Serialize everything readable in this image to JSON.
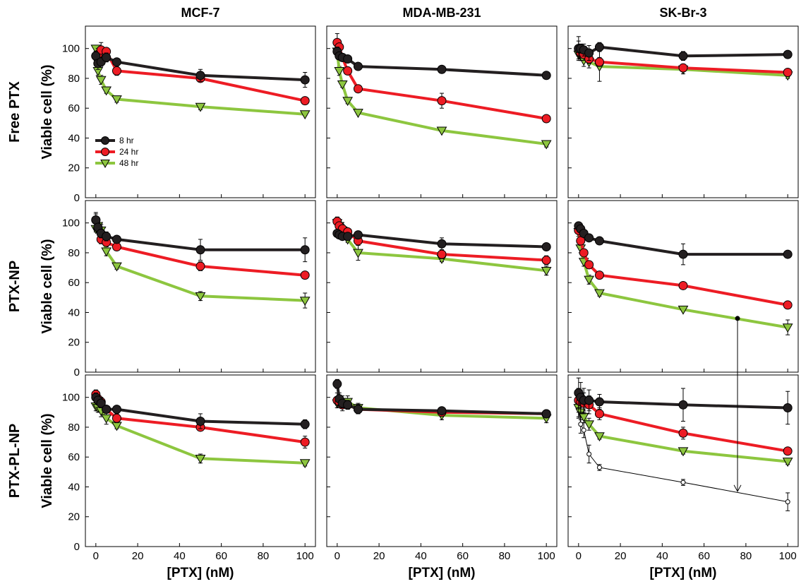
{
  "chart_data": {
    "type": "line",
    "title": "",
    "column_titles": [
      "MCF-7",
      "MDA-MB-231",
      "SK-Br-3"
    ],
    "row_titles": [
      "Free PTX",
      "PTX-NP",
      "PTX-PL-NP"
    ],
    "xlabel": "[PTX] (nM)",
    "ylabel": "Viable cell (%)",
    "xlim": [
      -5,
      105
    ],
    "ylim": [
      0,
      115
    ],
    "xticks": [
      0,
      20,
      40,
      60,
      80,
      100
    ],
    "yticks": [
      0,
      20,
      40,
      60,
      80,
      100
    ],
    "grid": false,
    "legend_position": "lower-left (top-left panel)",
    "colors": {
      "8 hr": "#231f20",
      "24 hr": "#ed1c24",
      "48 hr": "#8dc63f",
      "extra": "#000000"
    },
    "x": [
      0,
      1,
      2.5,
      5,
      10,
      50,
      100
    ],
    "legend": [
      {
        "name": "8 hr",
        "marker": "circle"
      },
      {
        "name": "24 hr",
        "marker": "circle"
      },
      {
        "name": "48 hr",
        "marker": "triangle-down"
      }
    ],
    "panels": [
      {
        "column": "MCF-7",
        "row": "Free PTX",
        "series": [
          {
            "name": "8 hr",
            "values": [
              95,
              90,
              91,
              94,
              91,
              82,
              79
            ],
            "errors": [
              3,
              4,
              3,
              3,
              2,
              4,
              5
            ]
          },
          {
            "name": "24 hr",
            "values": [
              95,
              96,
              99,
              98,
              85,
              80,
              65
            ],
            "errors": [
              3,
              4,
              5,
              2,
              3,
              2,
              2
            ]
          },
          {
            "name": "48 hr",
            "values": [
              100,
              85,
              79,
              72,
              66,
              61,
              56
            ],
            "errors": [
              2,
              3,
              3,
              2,
              2,
              2,
              1
            ]
          }
        ]
      },
      {
        "column": "MDA-MB-231",
        "row": "Free PTX",
        "series": [
          {
            "name": "8 hr",
            "values": [
              98,
              95,
              94,
              93,
              88,
              86,
              82
            ],
            "errors": [
              3,
              2,
              2,
              2,
              1,
              1,
              1
            ]
          },
          {
            "name": "24 hr",
            "values": [
              104,
              101,
              94,
              85,
              73,
              65,
              53
            ],
            "errors": [
              6,
              3,
              2,
              2,
              2,
              5,
              2
            ]
          },
          {
            "name": "48 hr",
            "values": [
              98,
              85,
              76,
              65,
              57,
              45,
              36
            ],
            "errors": [
              3,
              3,
              2,
              2,
              1,
              1,
              2
            ]
          }
        ]
      },
      {
        "column": "SK-Br-3",
        "row": "Free PTX",
        "series": [
          {
            "name": "8 hr",
            "values": [
              100,
              100,
              99,
              97,
              101,
              95,
              96
            ],
            "errors": [
              5,
              3,
              4,
              5,
              3,
              3,
              2
            ]
          },
          {
            "name": "24 hr",
            "values": [
              100,
              97,
              96,
              93,
              91,
              87,
              84
            ],
            "errors": [
              8,
              5,
              4,
              3,
              3,
              2,
              2
            ]
          },
          {
            "name": "48 hr",
            "values": [
              96,
              95,
              92,
              91,
              88,
              86,
              82
            ],
            "errors": [
              3,
              3,
              4,
              4,
              10,
              3,
              2
            ]
          }
        ]
      },
      {
        "column": "MCF-7",
        "row": "PTX-NP",
        "series": [
          {
            "name": "8 hr",
            "values": [
              102,
              97,
              93,
              91,
              89,
              82,
              82
            ],
            "errors": [
              5,
              3,
              3,
              3,
              2,
              7,
              8
            ]
          },
          {
            "name": "24 hr",
            "values": [
              102,
              97,
              89,
              87,
              84,
              71,
              65
            ],
            "errors": [
              4,
              3,
              3,
              2,
              2,
              3,
              2
            ]
          },
          {
            "name": "48 hr",
            "values": [
              96,
              98,
              95,
              81,
              71,
              51,
              48
            ],
            "errors": [
              2,
              3,
              4,
              3,
              2,
              3,
              5
            ]
          }
        ]
      },
      {
        "column": "MDA-MB-231",
        "row": "PTX-NP",
        "series": [
          {
            "name": "8 hr",
            "values": [
              93,
              92,
              91,
              91,
              92,
              86,
              84
            ],
            "errors": [
              2,
              2,
              2,
              2,
              2,
              4,
              2
            ]
          },
          {
            "name": "24 hr",
            "values": [
              101,
              98,
              96,
              94,
              88,
              79,
              75
            ],
            "errors": [
              3,
              3,
              3,
              2,
              3,
              3,
              3
            ]
          },
          {
            "name": "48 hr",
            "values": [
              100,
              98,
              95,
              89,
              80,
              76,
              68
            ],
            "errors": [
              3,
              3,
              3,
              2,
              5,
              2,
              3
            ]
          }
        ]
      },
      {
        "column": "SK-Br-3",
        "row": "PTX-NP",
        "series": [
          {
            "name": "8 hr",
            "values": [
              98,
              96,
              93,
              90,
              88,
              79,
              79
            ],
            "errors": [
              2,
              2,
              2,
              2,
              2,
              7,
              2
            ]
          },
          {
            "name": "24 hr",
            "values": [
              95,
              88,
              80,
              72,
              65,
              58,
              45
            ],
            "errors": [
              2,
              3,
              2,
              2,
              2,
              2,
              1
            ]
          },
          {
            "name": "48 hr",
            "values": [
              94,
              83,
              74,
              62,
              53,
              42,
              30
            ],
            "errors": [
              3,
              3,
              3,
              3,
              2,
              1,
              5
            ]
          }
        ]
      },
      {
        "column": "MCF-7",
        "row": "PTX-PL-NP",
        "series": [
          {
            "name": "8 hr",
            "values": [
              100,
              98,
              96,
              92,
              92,
              84,
              82
            ],
            "errors": [
              3,
              3,
              3,
              2,
              2,
              5,
              3
            ]
          },
          {
            "name": "24 hr",
            "values": [
              102,
              99,
              97,
              92,
              86,
              80,
              70
            ],
            "errors": [
              3,
              3,
              3,
              2,
              3,
              2,
              4
            ]
          },
          {
            "name": "48 hr",
            "values": [
              94,
              93,
              91,
              86,
              81,
              59,
              56
            ],
            "errors": [
              3,
              3,
              4,
              4,
              2,
              3,
              2
            ]
          }
        ]
      },
      {
        "column": "MDA-MB-231",
        "row": "PTX-NP, PTX-PL-NP",
        "series": [
          {
            "name": "8 hr",
            "values": [
              109,
              99,
              96,
              95,
              92,
              91,
              89
            ],
            "errors": [
              3,
              4,
              3,
              3,
              3,
              2,
              2
            ]
          },
          {
            "name": "24 hr",
            "values": [
              98,
              97,
              95,
              95,
              92,
              90,
              89
            ],
            "errors": [
              5,
              4,
              4,
              3,
              3,
              2,
              2
            ]
          },
          {
            "name": "48 hr",
            "values": [
              96,
              96,
              97,
              97,
              93,
              88,
              86
            ],
            "errors": [
              3,
              3,
              4,
              4,
              3,
              3,
              3
            ]
          }
        ]
      },
      {
        "column": "SK-Br-3",
        "row": "PTX-PL-NP",
        "series": [
          {
            "name": "8 hr",
            "values": [
              103,
              100,
              98,
              98,
              97,
              95,
              93
            ],
            "errors": [
              10,
              10,
              8,
              7,
              5,
              11,
              11
            ]
          },
          {
            "name": "24 hr",
            "values": [
              98,
              97,
              96,
              95,
              89,
              76,
              64
            ],
            "errors": [
              8,
              8,
              7,
              6,
              4,
              4,
              2
            ]
          },
          {
            "name": "48 hr",
            "values": [
              93,
              90,
              87,
              82,
              74,
              64,
              57
            ],
            "errors": [
              6,
              5,
              4,
              4,
              2,
              2,
              2
            ]
          },
          {
            "name": "",
            "marker": "open-circle",
            "values": [
              96,
              82,
              78,
              62,
              53,
              43,
              30
            ],
            "errors": [
              10,
              6,
              5,
              6,
              2,
              2,
              6
            ]
          }
        ]
      }
    ],
    "annotation_arrow": {
      "from_panel": "SK-Br-3 / PTX-NP",
      "to_panel": "SK-Br-3 / PTX-PL-NP",
      "x": 76,
      "y_from": 36,
      "y_to": 37
    }
  }
}
